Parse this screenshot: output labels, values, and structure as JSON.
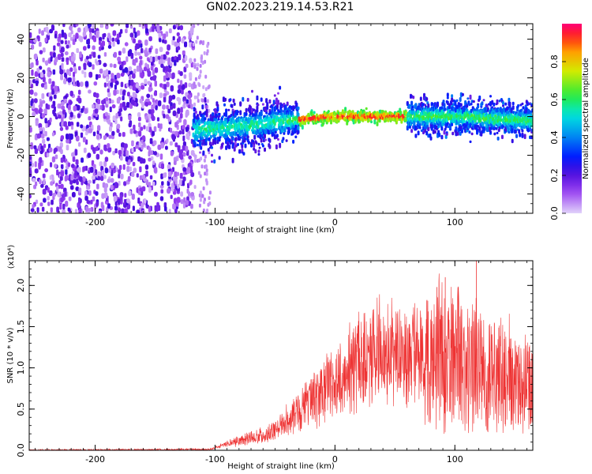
{
  "title": "GN02.2023.219.14.53.R21",
  "chart_data": [
    {
      "type": "heatmap",
      "xlabel": "Height of straight line (km)",
      "ylabel": "Frequency (Hz)",
      "xlim": [
        -255,
        165
      ],
      "ylim": [
        -50,
        48
      ],
      "xticks": [
        -200,
        -100,
        0,
        100
      ],
      "yticks": [
        -40,
        -20,
        0,
        20,
        40
      ],
      "colorbar": {
        "label": "Normalized spectral amplitude",
        "range": [
          0,
          1
        ],
        "ticks": [
          "0.0",
          "0.2",
          "0.4",
          "0.6",
          "0.8"
        ],
        "colormap": "rainbow"
      },
      "noise_region_x": [
        -255,
        -118
      ],
      "band_center_hz": [
        {
          "x": -118,
          "y": -7
        },
        {
          "x": -80,
          "y": -5
        },
        {
          "x": -50,
          "y": -3
        },
        {
          "x": -20,
          "y": -1
        },
        {
          "x": 0,
          "y": 0
        },
        {
          "x": 60,
          "y": 0
        },
        {
          "x": 100,
          "y": 0
        },
        {
          "x": 165,
          "y": -2
        }
      ],
      "peak_amplitude_x": [
        -30,
        60
      ]
    },
    {
      "type": "line",
      "xlabel": "Height of straight line (km)",
      "ylabel": "SNR (10 * v/v)",
      "y_multiplier": "(x10⁴)",
      "xlim": [
        -255,
        165
      ],
      "ylim": [
        0,
        2.3
      ],
      "xticks": [
        -200,
        -100,
        0,
        100
      ],
      "yticks": [
        "0.0",
        "0.5",
        "1.0",
        "1.5",
        "2.0"
      ],
      "series_color": "#ee3333",
      "envelope": [
        {
          "x": -255,
          "y": 0.0
        },
        {
          "x": -105,
          "y": 0.01
        },
        {
          "x": -80,
          "y": 0.12
        },
        {
          "x": -55,
          "y": 0.2
        },
        {
          "x": -40,
          "y": 0.35
        },
        {
          "x": -20,
          "y": 0.62
        },
        {
          "x": 0,
          "y": 0.85
        },
        {
          "x": 20,
          "y": 1.08
        },
        {
          "x": 40,
          "y": 1.2
        },
        {
          "x": 55,
          "y": 1.2
        },
        {
          "x": 75,
          "y": 1.12
        },
        {
          "x": 90,
          "y": 1.2
        },
        {
          "x": 110,
          "y": 1.05
        },
        {
          "x": 130,
          "y": 0.95
        },
        {
          "x": 150,
          "y": 0.85
        },
        {
          "x": 165,
          "y": 0.75
        }
      ],
      "peak_values": [
        {
          "x": 118,
          "y": 2.3
        },
        {
          "x": 92,
          "y": 2.1
        },
        {
          "x": 85,
          "y": 1.98
        }
      ]
    }
  ]
}
